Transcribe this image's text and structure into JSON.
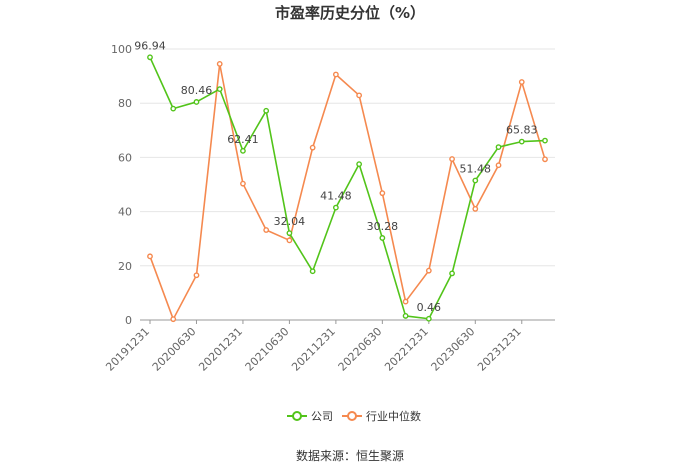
{
  "chart_data": {
    "type": "line",
    "title": "市盈率历史分位（%）",
    "ylim": [
      0,
      100
    ],
    "yticks": [
      0,
      20,
      40,
      60,
      80,
      100
    ],
    "grid": true,
    "legend_position": "bottom",
    "x": [
      "20191231",
      "20200331",
      "20200630",
      "20200930",
      "20201231",
      "20210331",
      "20210630",
      "20210930",
      "20211231",
      "20220331",
      "20220630",
      "20220930",
      "20221231",
      "20230331",
      "20230630",
      "20230930",
      "20231231",
      "20240331"
    ],
    "xtick_labels": [
      "20191231",
      "20200630",
      "20201231",
      "20210630",
      "20211231",
      "20220630",
      "20221231",
      "20230630",
      "20231231"
    ],
    "series": [
      {
        "name": "公司",
        "color": "#52c41a",
        "values": [
          96.94,
          78.0,
          80.46,
          85.2,
          62.41,
          77.2,
          32.04,
          18.0,
          41.48,
          57.5,
          30.28,
          1.5,
          0.46,
          17.2,
          51.48,
          63.8,
          65.83,
          66.2
        ]
      },
      {
        "name": "行业中位数",
        "color": "#f5894f",
        "values": [
          23.5,
          0.3,
          16.5,
          94.5,
          50.3,
          33.2,
          29.4,
          63.6,
          90.6,
          82.9,
          46.8,
          6.8,
          18.2,
          59.4,
          41.0,
          57.1,
          87.8,
          59.3
        ]
      }
    ],
    "data_labels": [
      {
        "series": 0,
        "index": 0,
        "text": "96.94"
      },
      {
        "series": 0,
        "index": 2,
        "text": "80.46"
      },
      {
        "series": 0,
        "index": 4,
        "text": "62.41"
      },
      {
        "series": 0,
        "index": 6,
        "text": "32.04"
      },
      {
        "series": 0,
        "index": 8,
        "text": "41.48"
      },
      {
        "series": 0,
        "index": 10,
        "text": "30.28"
      },
      {
        "series": 0,
        "index": 12,
        "text": "0.46"
      },
      {
        "series": 0,
        "index": 14,
        "text": "51.48"
      },
      {
        "series": 0,
        "index": 16,
        "text": "65.83"
      }
    ]
  },
  "source": "数据来源：恒生聚源"
}
